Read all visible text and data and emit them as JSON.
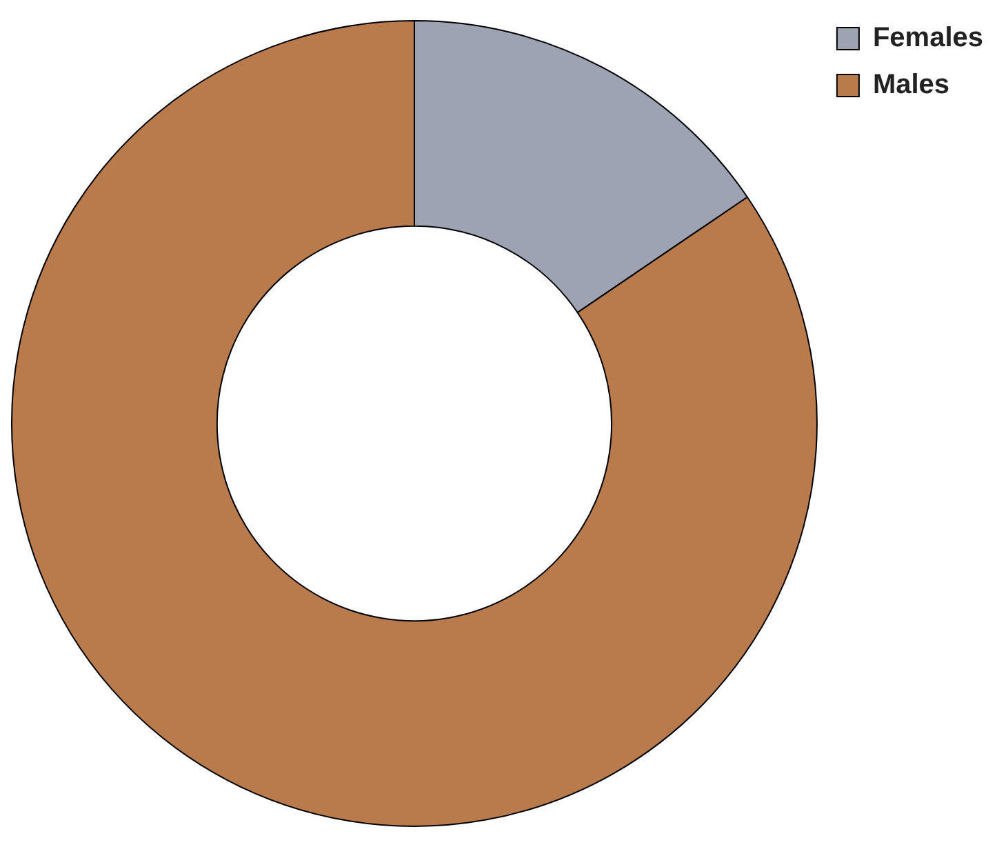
{
  "chart_data": {
    "type": "donut",
    "categories": [
      "Females",
      "Males"
    ],
    "values": [
      15.5,
      84.5
    ],
    "colors": [
      "#9ea3b3",
      "#b97b4b"
    ],
    "legend": "top right"
  }
}
